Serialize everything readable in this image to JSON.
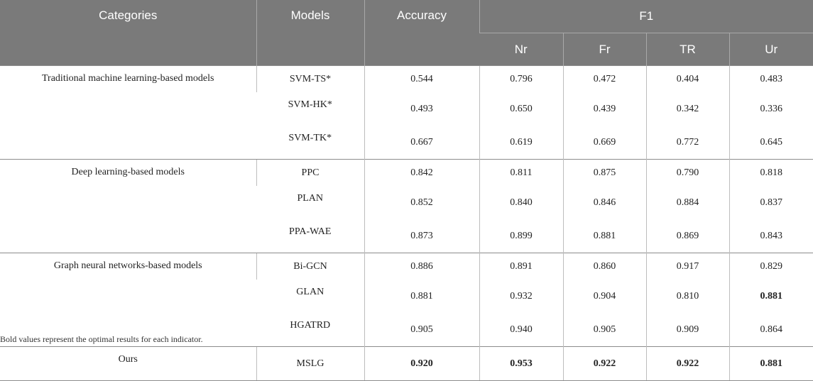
{
  "header": {
    "categories": "Categories",
    "models": "Models",
    "accuracy": "Accuracy",
    "f1": "F1",
    "sub": [
      "Nr",
      "Fr",
      "TR",
      "Ur"
    ]
  },
  "groups": [
    {
      "category": "Traditional machine learning-based models",
      "rows": [
        {
          "model": "SVM-TS*",
          "accuracy": "0.544",
          "nr": "0.796",
          "fr": "0.472",
          "tr": "0.404",
          "ur": "0.483"
        },
        {
          "model": "SVM-HK*",
          "accuracy": "0.493",
          "nr": "0.650",
          "fr": "0.439",
          "tr": "0.342",
          "ur": "0.336"
        },
        {
          "model": "SVM-TK*",
          "accuracy": "0.667",
          "nr": "0.619",
          "fr": "0.669",
          "tr": "0.772",
          "ur": "0.645"
        }
      ]
    },
    {
      "category": "Deep learning-based models",
      "rows": [
        {
          "model": "PPC",
          "accuracy": "0.842",
          "nr": "0.811",
          "fr": "0.875",
          "tr": "0.790",
          "ur": "0.818"
        },
        {
          "model": "PLAN",
          "accuracy": "0.852",
          "nr": "0.840",
          "fr": "0.846",
          "tr": "0.884",
          "ur": "0.837"
        },
        {
          "model": "PPA-WAE",
          "accuracy": "0.873",
          "nr": "0.899",
          "fr": "0.881",
          "tr": "0.869",
          "ur": "0.843"
        }
      ]
    },
    {
      "category": "Graph neural networks-based models",
      "rows": [
        {
          "model": "Bi-GCN",
          "accuracy": "0.886",
          "nr": "0.891",
          "fr": "0.860",
          "tr": "0.917",
          "ur": "0.829"
        },
        {
          "model": "GLAN",
          "accuracy": "0.881",
          "nr": "0.932",
          "fr": "0.904",
          "tr": "0.810",
          "ur": "0.881"
        },
        {
          "model": "HGATRD",
          "accuracy": "0.905",
          "nr": "0.940",
          "fr": "0.905",
          "tr": "0.909",
          "ur": "0.864"
        }
      ]
    },
    {
      "category": "Ours",
      "rows": [
        {
          "model": "MSLG",
          "accuracy": "0.920",
          "nr": "0.953",
          "fr": "0.922",
          "tr": "0.922",
          "ur": "0.881"
        }
      ]
    }
  ],
  "note": "Bold values represent the optimal results for each indicator."
}
